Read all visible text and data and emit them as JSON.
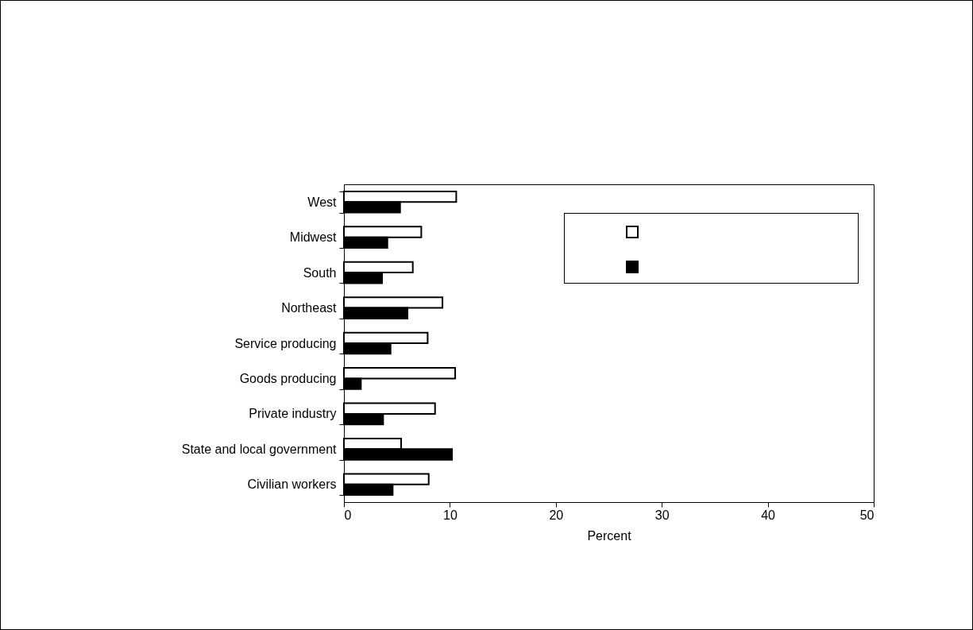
{
  "chart_data": {
    "type": "bar",
    "orientation": "horizontal",
    "xlabel": "Percent",
    "categories": [
      "West",
      "Midwest",
      "South",
      "Northeast",
      "Service producing",
      "Goods producing",
      "Private industry",
      "State and local government",
      "Civilian workers"
    ],
    "series": [
      {
        "color": "#ffffff",
        "values": [
          10.6,
          7.3,
          6.5,
          9.3,
          7.9,
          10.5,
          8.6,
          5.4,
          8.0
        ]
      },
      {
        "color": "#000000",
        "values": [
          5.3,
          4.1,
          3.6,
          6.0,
          4.4,
          1.6,
          3.7,
          10.2,
          4.6
        ]
      }
    ],
    "xlim": [
      0,
      50
    ],
    "xticks": [
      0,
      10,
      20,
      30,
      40,
      50
    ],
    "grid": false
  }
}
